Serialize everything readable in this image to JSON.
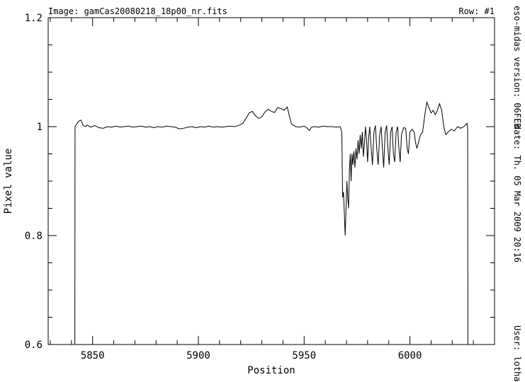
{
  "chart_data": {
    "type": "line",
    "title": "Image:  gamCas20080218_18p00_nr.fits",
    "row_label": "Row:  #1",
    "side_version": "eso-midas version: 06FEB",
    "side_date": "date: Th. 05 Mar 2009 20:16",
    "side_user": "User: lothar",
    "x_label": "Position",
    "y_label": "Pixel value",
    "xlim": [
      5829,
      6040
    ],
    "ylim": [
      0.6,
      1.2
    ],
    "xticks": [
      5850,
      5900,
      5950,
      6000
    ],
    "yticks": [
      0.6,
      0.8,
      1,
      1.2
    ],
    "color": "#000000",
    "x": [
      5841.6,
      5841.7,
      5842.5,
      5843.5,
      5844.5,
      5845.5,
      5846.5,
      5847.5,
      5849,
      5851,
      5853,
      5855,
      5857,
      5859,
      5861,
      5863,
      5865,
      5867,
      5869,
      5871,
      5873,
      5875,
      5877,
      5879,
      5881,
      5883,
      5885,
      5887,
      5889,
      5891,
      5893,
      5895,
      5897,
      5899,
      5901,
      5903,
      5905,
      5907,
      5909,
      5911,
      5913,
      5915,
      5917,
      5919,
      5921,
      5922.5,
      5924,
      5925.5,
      5927,
      5928.5,
      5930,
      5931.5,
      5933,
      5934.5,
      5936,
      5937.5,
      5939,
      5940.5,
      5942,
      5943,
      5944,
      5946,
      5948,
      5950,
      5951.5,
      5952.5,
      5953.5,
      5955,
      5957,
      5959,
      5961,
      5963,
      5965,
      5967,
      5967.8,
      5968.2,
      5968.6,
      5969,
      5969.4,
      5969.8,
      5970.2,
      5970.6,
      5971,
      5971.4,
      5971.8,
      5972.2,
      5972.6,
      5973,
      5973.5,
      5974,
      5974.5,
      5975,
      5975.5,
      5976,
      5976.5,
      5977,
      5977.5,
      5978,
      5978.5,
      5979,
      5979.5,
      5980,
      5980.5,
      5981,
      5981.7,
      5982.3,
      5983,
      5983.7,
      5984.3,
      5985,
      5985.7,
      5986.4,
      5987,
      5987.6,
      5988.3,
      5989,
      5989.6,
      5990.2,
      5990.9,
      5991.6,
      5992.2,
      5992.8,
      5993.5,
      5994.2,
      5994.8,
      5995.4,
      5996,
      5997,
      5998,
      5998.7,
      5999.3,
      6000,
      6001,
      6002,
      6002.7,
      6003.3,
      6004,
      6005,
      6006,
      6007,
      6008,
      6009,
      6010,
      6011,
      6012,
      6013,
      6014,
      6015,
      6016,
      6017,
      6018,
      6019.5,
      6021,
      6022.5,
      6024,
      6025.5,
      6027,
      6027.3,
      6027.4
    ],
    "values": [
      0.6,
      1.0,
      1.005,
      1.01,
      1.012,
      1.003,
      1.0,
      1.003,
      0.999,
      1.002,
      0.998,
      0.997,
      1.0,
      0.999,
      1.001,
      0.999,
      1.0,
      1.001,
      0.999,
      1.0,
      1.001,
      0.999,
      1.0,
      0.998,
      1.0,
      0.999,
      1.001,
      1.0,
      0.999,
      0.996,
      0.997,
      0.999,
      1.0,
      0.998,
      1.0,
      0.999,
      1.001,
      0.999,
      1.0,
      0.999,
      1.0,
      1.001,
      1.0,
      1.002,
      1.006,
      1.015,
      1.025,
      1.028,
      1.02,
      1.015,
      1.018,
      1.027,
      1.032,
      1.028,
      1.026,
      1.035,
      1.033,
      1.03,
      1.036,
      1.02,
      1.005,
      1.0,
      0.999,
      1.001,
      0.997,
      0.993,
      0.999,
      1.0,
      0.999,
      1.001,
      1.0,
      1.0,
      0.999,
      1.0,
      0.99,
      0.87,
      0.88,
      0.84,
      0.8,
      0.85,
      0.9,
      0.87,
      0.85,
      0.92,
      0.95,
      0.9,
      0.95,
      0.93,
      0.955,
      0.925,
      0.96,
      0.94,
      0.975,
      0.95,
      0.985,
      0.96,
      0.99,
      0.945,
      0.97,
      1.0,
      0.975,
      0.935,
      0.98,
      1.0,
      0.96,
      0.93,
      0.99,
      1.002,
      0.96,
      0.93,
      0.985,
      1.0,
      0.96,
      0.925,
      0.99,
      1.002,
      0.96,
      0.93,
      0.99,
      1.0,
      0.95,
      0.935,
      0.99,
      1.0,
      0.96,
      0.935,
      0.985,
      0.998,
      0.997,
      0.96,
      0.95,
      0.99,
      0.995,
      0.99,
      0.97,
      0.96,
      0.97,
      0.985,
      0.99,
      1.02,
      1.045,
      1.035,
      1.025,
      1.03,
      1.022,
      1.03,
      1.042,
      1.03,
      1.0,
      0.985,
      0.99,
      0.995,
      0.992,
      1.0,
      0.997,
      1.0,
      1.006,
      0.995,
      0.6
    ]
  }
}
